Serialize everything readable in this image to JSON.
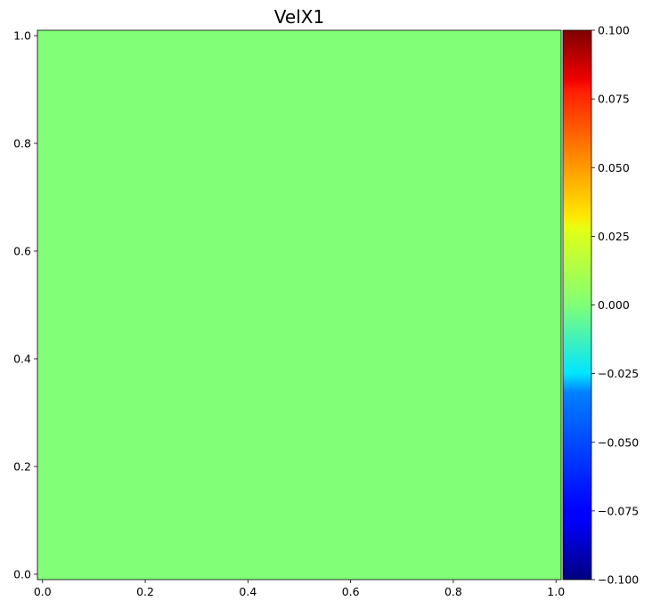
{
  "chart_data": {
    "type": "heatmap",
    "title": "VelX1",
    "xlabel": "",
    "ylabel": "",
    "xlim": [
      -0.01,
      1.01
    ],
    "ylim": [
      -0.01,
      1.01
    ],
    "x_ticks": [
      0.0,
      0.2,
      0.4,
      0.6,
      0.8,
      1.0
    ],
    "x_tick_labels": [
      "0.0",
      "0.2",
      "0.4",
      "0.6",
      "0.8",
      "1.0"
    ],
    "y_ticks": [
      0.0,
      0.2,
      0.4,
      0.6,
      0.8,
      1.0
    ],
    "y_tick_labels": [
      "0.0",
      "0.2",
      "0.4",
      "0.6",
      "0.8",
      "1.0"
    ],
    "field": {
      "value": 0.0,
      "description": "uniform",
      "color": "#80ff77"
    },
    "grid": false,
    "colorbar": {
      "colormap": "jet",
      "range": [
        -0.1,
        0.1
      ],
      "ticks": [
        0.1,
        0.075,
        0.05,
        0.025,
        0.0,
        -0.025,
        -0.05,
        -0.075,
        -0.1
      ],
      "tick_labels": [
        "0.100",
        "0.075",
        "0.050",
        "0.025",
        "0.000",
        "−0.025",
        "−0.050",
        "−0.075",
        "−0.100"
      ],
      "placement": "right"
    }
  }
}
